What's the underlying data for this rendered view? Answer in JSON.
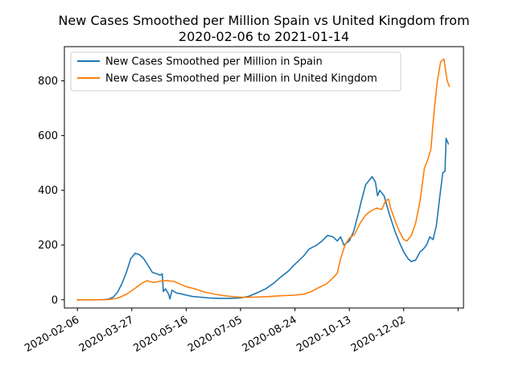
{
  "chart_data": {
    "type": "line",
    "title_lines": [
      "New Cases Smoothed per Million Spain vs United Kingdom from",
      "2020-02-06 to 2021-01-14"
    ],
    "xlabel": "",
    "ylabel": "",
    "x_start": "2020-02-06",
    "x_end": "2021-01-14",
    "xlim": [
      "2020-01-25",
      "2021-01-26"
    ],
    "x_ticks": [
      "2020-02-06",
      "2020-03-27",
      "2020-05-16",
      "2020-07-05",
      "2020-08-24",
      "2020-10-13",
      "2020-12-02",
      "2021-01-21"
    ],
    "x_tick_labels": [
      "2020-02-06",
      "2020-03-27",
      "2020-05-16",
      "2020-07-05",
      "2020-08-24",
      "2020-10-13",
      "2020-12-02",
      ""
    ],
    "ylim": [
      -30,
      925
    ],
    "y_ticks": [
      0,
      200,
      400,
      600,
      800
    ],
    "grid": false,
    "legend_position": "top-left",
    "series": [
      {
        "name": "New Cases Smoothed per Million in Spain",
        "color": "#1f77b4",
        "points": [
          [
            "2020-02-06",
            0
          ],
          [
            "2020-02-20",
            0
          ],
          [
            "2020-03-01",
            0.5
          ],
          [
            "2020-03-06",
            3
          ],
          [
            "2020-03-10",
            10
          ],
          [
            "2020-03-14",
            28
          ],
          [
            "2020-03-18",
            60
          ],
          [
            "2020-03-22",
            100
          ],
          [
            "2020-03-26",
            150
          ],
          [
            "2020-03-30",
            170
          ],
          [
            "2020-04-03",
            165
          ],
          [
            "2020-04-07",
            150
          ],
          [
            "2020-04-11",
            125
          ],
          [
            "2020-04-15",
            100
          ],
          [
            "2020-04-19",
            95
          ],
          [
            "2020-04-22",
            90
          ],
          [
            "2020-04-24",
            95
          ],
          [
            "2020-04-25",
            30
          ],
          [
            "2020-04-27",
            40
          ],
          [
            "2020-04-30",
            20
          ],
          [
            "2020-05-01",
            3
          ],
          [
            "2020-05-03",
            35
          ],
          [
            "2020-05-07",
            25
          ],
          [
            "2020-05-11",
            22
          ],
          [
            "2020-05-16",
            17
          ],
          [
            "2020-05-22",
            12
          ],
          [
            "2020-05-28",
            10
          ],
          [
            "2020-06-05",
            7
          ],
          [
            "2020-06-15",
            5
          ],
          [
            "2020-06-25",
            5
          ],
          [
            "2020-07-05",
            7
          ],
          [
            "2020-07-12",
            12
          ],
          [
            "2020-07-20",
            25
          ],
          [
            "2020-07-28",
            40
          ],
          [
            "2020-08-05",
            62
          ],
          [
            "2020-08-10",
            80
          ],
          [
            "2020-08-18",
            105
          ],
          [
            "2020-08-24",
            130
          ],
          [
            "2020-09-01",
            160
          ],
          [
            "2020-09-06",
            185
          ],
          [
            "2020-09-13",
            200
          ],
          [
            "2020-09-18",
            215
          ],
          [
            "2020-09-23",
            235
          ],
          [
            "2020-09-28",
            230
          ],
          [
            "2020-10-02",
            215
          ],
          [
            "2020-10-05",
            230
          ],
          [
            "2020-10-08",
            200
          ],
          [
            "2020-10-13",
            215
          ],
          [
            "2020-10-17",
            250
          ],
          [
            "2020-10-21",
            310
          ],
          [
            "2020-10-24",
            360
          ],
          [
            "2020-10-28",
            420
          ],
          [
            "2020-11-01",
            440
          ],
          [
            "2020-11-03",
            450
          ],
          [
            "2020-11-06",
            430
          ],
          [
            "2020-11-08",
            380
          ],
          [
            "2020-11-10",
            400
          ],
          [
            "2020-11-14",
            380
          ],
          [
            "2020-11-19",
            310
          ],
          [
            "2020-11-24",
            250
          ],
          [
            "2020-11-28",
            210
          ],
          [
            "2020-12-02",
            175
          ],
          [
            "2020-12-06",
            150
          ],
          [
            "2020-12-09",
            140
          ],
          [
            "2020-12-13",
            145
          ],
          [
            "2020-12-17",
            175
          ],
          [
            "2020-12-20",
            185
          ],
          [
            "2020-12-23",
            200
          ],
          [
            "2020-12-26",
            230
          ],
          [
            "2020-12-29",
            220
          ],
          [
            "2021-01-01",
            270
          ],
          [
            "2021-01-04",
            370
          ],
          [
            "2021-01-07",
            465
          ],
          [
            "2021-01-09",
            470
          ],
          [
            "2021-01-10",
            590
          ],
          [
            "2021-01-12",
            570
          ]
        ]
      },
      {
        "name": "New Cases Smoothed per Million in United Kingdom",
        "color": "#ff7f0e",
        "points": [
          [
            "2020-02-06",
            0
          ],
          [
            "2020-02-25",
            0
          ],
          [
            "2020-03-06",
            1
          ],
          [
            "2020-03-14",
            6
          ],
          [
            "2020-03-22",
            20
          ],
          [
            "2020-03-30",
            42
          ],
          [
            "2020-04-05",
            60
          ],
          [
            "2020-04-10",
            70
          ],
          [
            "2020-04-16",
            63
          ],
          [
            "2020-04-22",
            68
          ],
          [
            "2020-04-28",
            70
          ],
          [
            "2020-05-05",
            67
          ],
          [
            "2020-05-10",
            58
          ],
          [
            "2020-05-16",
            48
          ],
          [
            "2020-05-24",
            40
          ],
          [
            "2020-06-02",
            28
          ],
          [
            "2020-06-12",
            20
          ],
          [
            "2020-06-22",
            14
          ],
          [
            "2020-07-02",
            10
          ],
          [
            "2020-07-10",
            9
          ],
          [
            "2020-07-20",
            10
          ],
          [
            "2020-08-01",
            12
          ],
          [
            "2020-08-12",
            15
          ],
          [
            "2020-08-24",
            17
          ],
          [
            "2020-09-01",
            20
          ],
          [
            "2020-09-08",
            30
          ],
          [
            "2020-09-15",
            45
          ],
          [
            "2020-09-22",
            58
          ],
          [
            "2020-09-28",
            80
          ],
          [
            "2020-10-02",
            98
          ],
          [
            "2020-10-05",
            150
          ],
          [
            "2020-10-09",
            200
          ],
          [
            "2020-10-13",
            225
          ],
          [
            "2020-10-18",
            240
          ],
          [
            "2020-10-23",
            280
          ],
          [
            "2020-10-28",
            310
          ],
          [
            "2020-11-02",
            325
          ],
          [
            "2020-11-07",
            335
          ],
          [
            "2020-11-12",
            330
          ],
          [
            "2020-11-15",
            360
          ],
          [
            "2020-11-18",
            368
          ],
          [
            "2020-11-20",
            335
          ],
          [
            "2020-11-24",
            290
          ],
          [
            "2020-11-28",
            250
          ],
          [
            "2020-12-02",
            220
          ],
          [
            "2020-12-05",
            215
          ],
          [
            "2020-12-09",
            235
          ],
          [
            "2020-12-13",
            280
          ],
          [
            "2020-12-17",
            360
          ],
          [
            "2020-12-21",
            480
          ],
          [
            "2020-12-24",
            510
          ],
          [
            "2020-12-27",
            550
          ],
          [
            "2020-12-30",
            690
          ],
          [
            "2021-01-02",
            800
          ],
          [
            "2021-01-05",
            870
          ],
          [
            "2021-01-08",
            880
          ],
          [
            "2021-01-11",
            800
          ],
          [
            "2021-01-13",
            780
          ]
        ]
      }
    ]
  }
}
